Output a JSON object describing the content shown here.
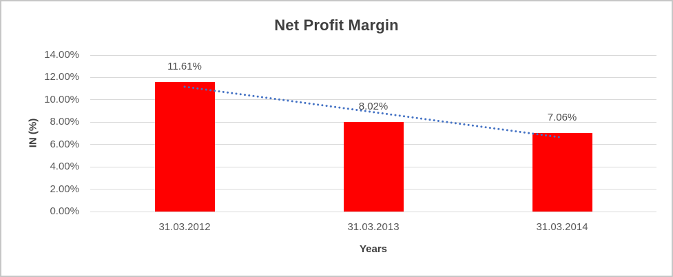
{
  "chart": {
    "title": "Net Profit Margin",
    "y_axis_title": "IN (%)",
    "x_axis_title": "Years"
  },
  "chart_data": {
    "type": "bar",
    "title": "Net Profit Margin",
    "categories": [
      "31.03.2012",
      "31.03.2013",
      "31.03.2014"
    ],
    "values": [
      11.61,
      8.02,
      7.06
    ],
    "data_labels": [
      "11.61%",
      "8.02%",
      "7.06%"
    ],
    "xlabel": "Years",
    "ylabel": "IN (%)",
    "ylim": [
      0,
      14
    ],
    "y_tick_step": 2,
    "y_tick_labels": [
      "0.00%",
      "2.00%",
      "4.00%",
      "6.00%",
      "8.00%",
      "10.00%",
      "12.00%",
      "14.00%"
    ],
    "grid": true,
    "legend": false,
    "trendline": {
      "type": "linear",
      "style": "dotted"
    }
  },
  "colors": {
    "bar": "#ff0000",
    "trendline": "#4472c4",
    "gridline": "#d9d9d9",
    "title_text": "#3f3f3f",
    "axis_text": "#595959",
    "data_label_text": "#4d4d4d",
    "frame_border": "#c6c6c6"
  }
}
